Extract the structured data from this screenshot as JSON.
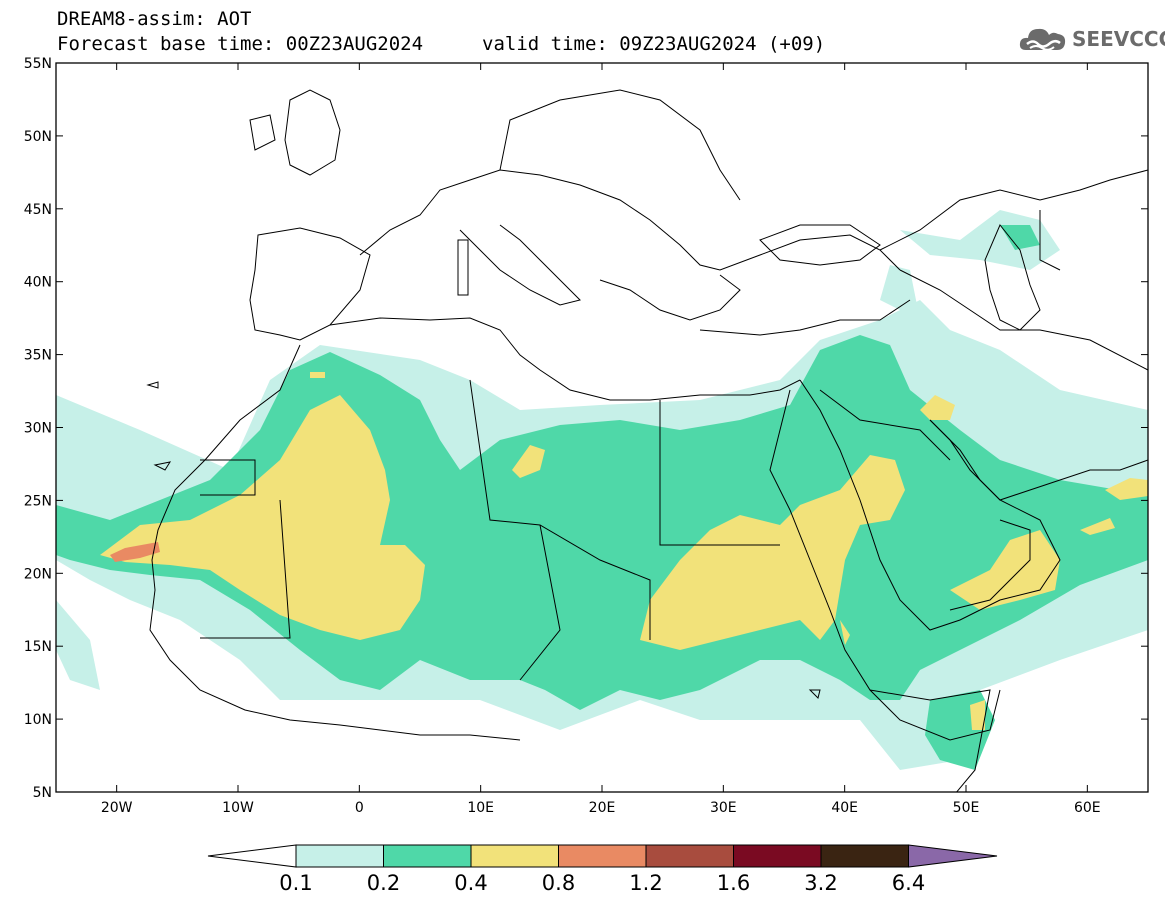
{
  "title": {
    "line1": "DREAM8-assim: AOT",
    "line2_base": "Forecast base time: 00Z23AUG2024",
    "line2_valid": "valid time: 09Z23AUG2024 (+09)"
  },
  "logo": {
    "text": "SEEVCCC",
    "icon": "cloud-icon"
  },
  "map": {
    "extent": {
      "lon_min": -25,
      "lon_max": 65,
      "lat_min": 5,
      "lat_max": 55
    },
    "lat_ticks": [
      {
        "value": 55,
        "label": "55N"
      },
      {
        "value": 50,
        "label": "50N"
      },
      {
        "value": 45,
        "label": "45N"
      },
      {
        "value": 40,
        "label": "40N"
      },
      {
        "value": 35,
        "label": "35N"
      },
      {
        "value": 30,
        "label": "30N"
      },
      {
        "value": 25,
        "label": "25N"
      },
      {
        "value": 20,
        "label": "20N"
      },
      {
        "value": 15,
        "label": "15N"
      },
      {
        "value": 10,
        "label": "10N"
      },
      {
        "value": 5,
        "label": "5N"
      }
    ],
    "lon_ticks": [
      {
        "value": -20,
        "label": "20W"
      },
      {
        "value": -10,
        "label": "10W"
      },
      {
        "value": 0,
        "label": "0"
      },
      {
        "value": 10,
        "label": "10E"
      },
      {
        "value": 20,
        "label": "20E"
      },
      {
        "value": 30,
        "label": "30E"
      },
      {
        "value": 40,
        "label": "40E"
      },
      {
        "value": 50,
        "label": "50E"
      },
      {
        "value": 60,
        "label": "60E"
      }
    ]
  },
  "colorbar": {
    "colors": [
      "#c6f0e8",
      "#4fd8a8",
      "#f2e27a",
      "#e98a63",
      "#a84c3e",
      "#7a0a22",
      "#3a2412",
      "#8a68a8"
    ],
    "low_color": "#ffffff",
    "labels": [
      "0.1",
      "0.2",
      "0.4",
      "0.8",
      "1.2",
      "1.6",
      "3.2",
      "6.4"
    ]
  }
}
